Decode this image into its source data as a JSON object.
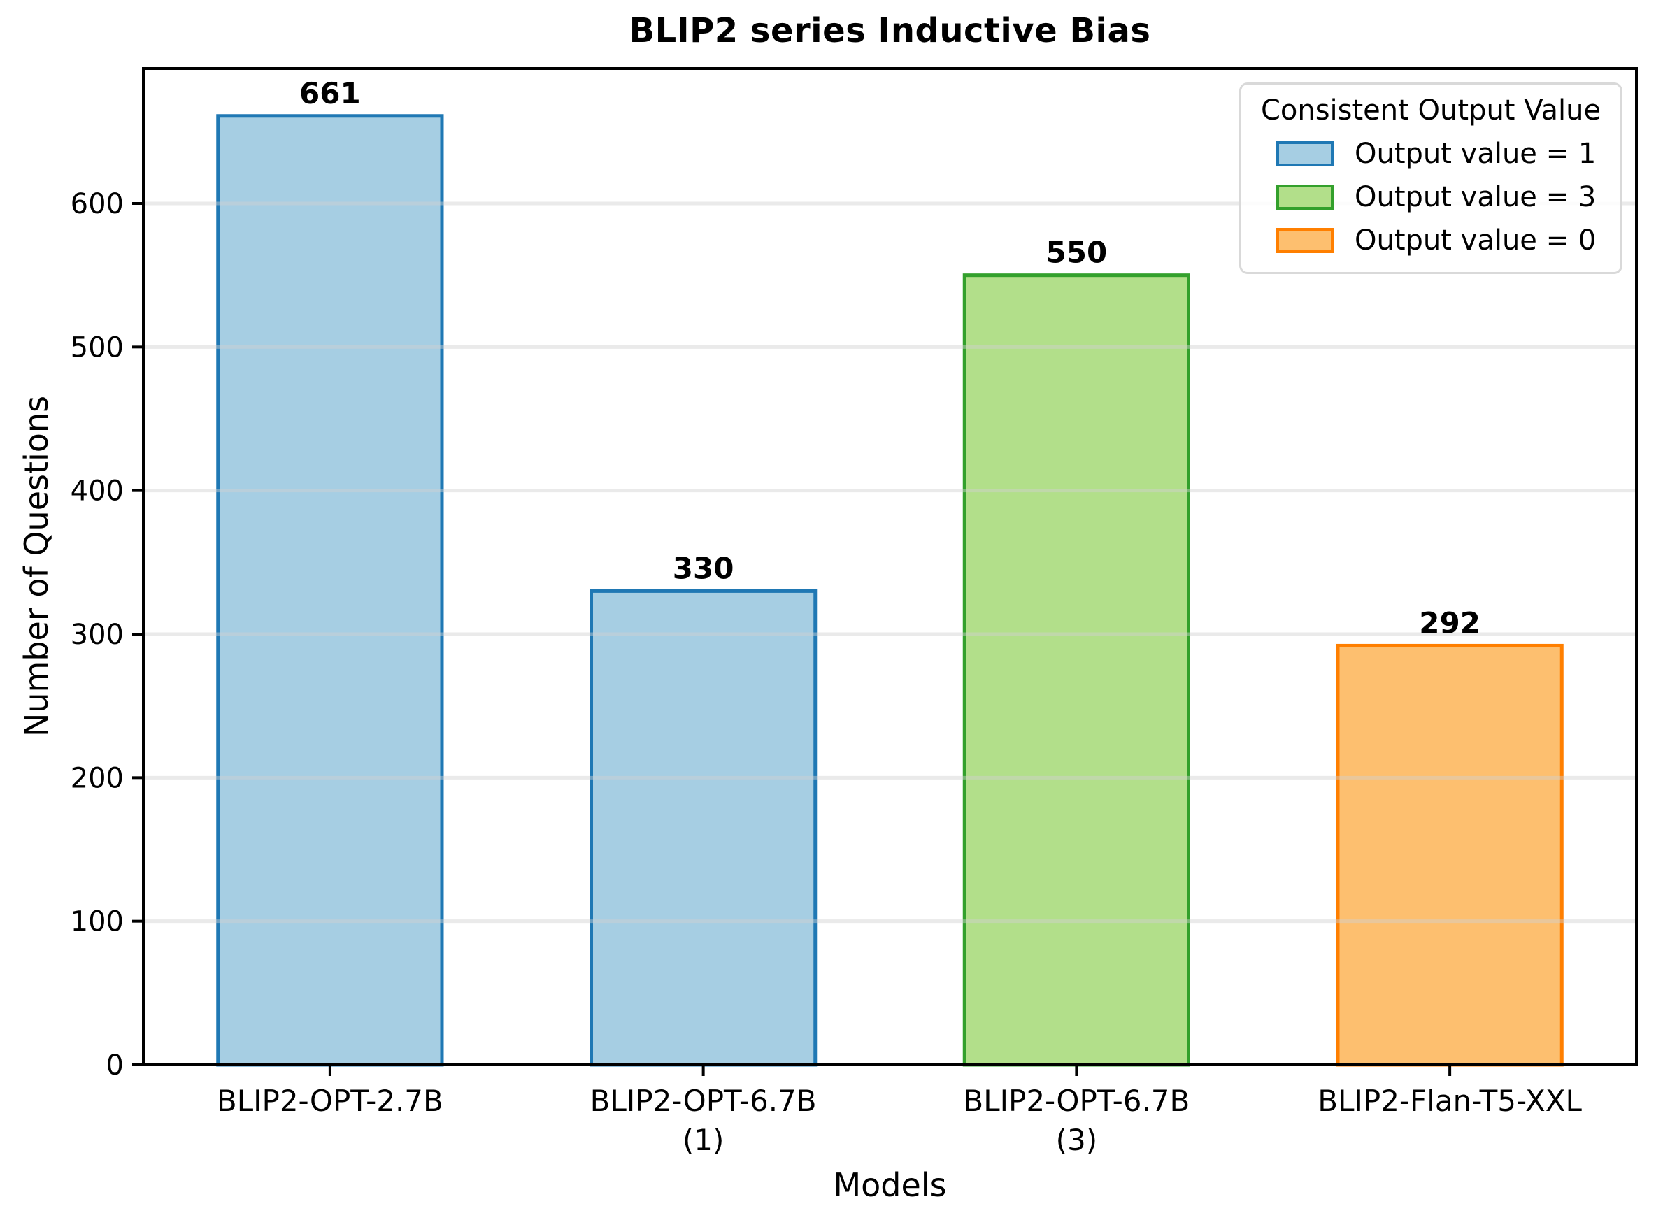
{
  "figure": {
    "background_color": "#ffffff",
    "text_color": "#000000",
    "grid_color": "#d0d0d0",
    "spine_color": "#000000"
  },
  "chart_data": {
    "type": "bar",
    "title": "BLIP2 series Inductive Bias",
    "xlabel": "Models",
    "ylabel": "Number of Questions",
    "categories": [
      "BLIP2-OPT-2.7B",
      "BLIP2-OPT-6.7B\n(1)",
      "BLIP2-OPT-6.7B\n(3)",
      "BLIP2-Flan-T5-XXL"
    ],
    "values": [
      661,
      330,
      550,
      292
    ],
    "value_labels": [
      "661",
      "330",
      "550",
      "292"
    ],
    "bar_colors": [
      {
        "fill": "#a6cee3",
        "edge": "#1f78b4"
      },
      {
        "fill": "#a6cee3",
        "edge": "#1f78b4"
      },
      {
        "fill": "#b2df8a",
        "edge": "#33a02c"
      },
      {
        "fill": "#fdbf6f",
        "edge": "#ff7f00"
      }
    ],
    "ylim": [
      0,
      694
    ],
    "yticks": [
      0,
      100,
      200,
      300,
      400,
      500,
      600
    ],
    "grid": "horizontal",
    "bar_width_fraction": 0.6,
    "legend": {
      "title": "Consistent Output Value",
      "position": "upper right",
      "entries": [
        {
          "label": "Output value = 1",
          "fill": "#a6cee3",
          "edge": "#1f78b4"
        },
        {
          "label": "Output value = 3",
          "fill": "#b2df8a",
          "edge": "#33a02c"
        },
        {
          "label": "Output value = 0",
          "fill": "#fdbf6f",
          "edge": "#ff7f00"
        }
      ]
    }
  }
}
